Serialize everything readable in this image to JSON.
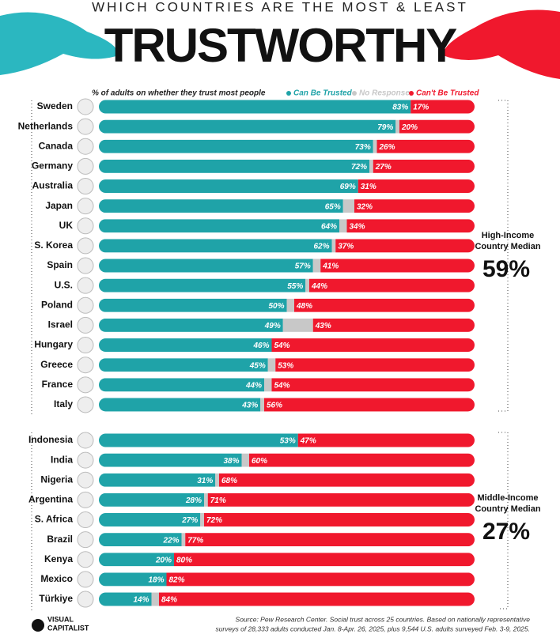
{
  "header": {
    "title": "WHICH COUNTRIES ARE THE MOST & LEAST",
    "subtitle": "TRUSTWORTHY"
  },
  "source": [
    "Source: Pew Research Center. Social trust across 25 countries. Based on nationally representative",
    "surveys of 28,333 adults conducted Jan. 8-Apr. 26, 2025, plus 9,544 U.S. adults surveyed Feb. 3-9, 2025."
  ],
  "brand": [
    "VISUAL",
    "CAPITALIST"
  ],
  "chart_data": [
    {
      "type": "bar",
      "orientation": "horizontal",
      "stacked": true,
      "axis_label": "% of adults on whether they trust most people",
      "categories": [
        "Sweden",
        "Netherlands",
        "Canada",
        "Germany",
        "Australia",
        "Japan",
        "UK",
        "S. Korea",
        "Spain",
        "U.S.",
        "Poland",
        "Israel",
        "Hungary",
        "Greece",
        "France",
        "Italy"
      ],
      "xlim": [
        0,
        100
      ],
      "series": [
        {
          "name": "Can Be Trusted",
          "color": "#1fa3a8",
          "values": [
            83,
            79,
            73,
            72,
            69,
            65,
            64,
            62,
            57,
            55,
            50,
            49,
            46,
            45,
            44,
            43
          ],
          "value_labels": [
            "83%",
            "79%",
            "73%",
            "72%",
            "69%",
            "65%",
            "64%",
            "62%",
            "57%",
            "55%",
            "50%",
            "49%",
            "46%",
            "45%",
            "44%",
            "43%"
          ]
        },
        {
          "name": "No Response",
          "color": "#c8c8c8",
          "values": [
            0,
            1,
            1,
            1,
            0,
            3,
            2,
            1,
            2,
            1,
            2,
            8,
            0,
            2,
            2,
            1
          ]
        },
        {
          "name": "Can't Be Trusted",
          "color": "#f0182d",
          "values": [
            17,
            20,
            26,
            27,
            31,
            32,
            34,
            37,
            41,
            44,
            48,
            43,
            54,
            53,
            54,
            56
          ],
          "value_labels": [
            "17%",
            "20%",
            "26%",
            "27%",
            "31%",
            "32%",
            "34%",
            "37%",
            "41%",
            "44%",
            "48%",
            "43%",
            "54%",
            "53%",
            "54%",
            "56%"
          ]
        }
      ],
      "annotation_lines": [
        "High-Income",
        "Country Median"
      ],
      "annotation_value": "59%"
    },
    {
      "type": "bar",
      "orientation": "horizontal",
      "stacked": true,
      "categories": [
        "Indonesia",
        "India",
        "Nigeria",
        "Argentina",
        "S. Africa",
        "Brazil",
        "Kenya",
        "Mexico",
        "Türkiye"
      ],
      "xlim": [
        0,
        100
      ],
      "series": [
        {
          "color": "#1fa3a8",
          "values": [
            53,
            38,
            31,
            28,
            27,
            22,
            20,
            18,
            14
          ],
          "value_labels": [
            "53%",
            "38%",
            "31%",
            "28%",
            "27%",
            "22%",
            "20%",
            "18%",
            "14%"
          ]
        },
        {
          "color": "#c8c8c8",
          "values": [
            0,
            2,
            1,
            1,
            1,
            1,
            0,
            0,
            2
          ]
        },
        {
          "color": "#f0182d",
          "values": [
            47,
            60,
            68,
            71,
            72,
            77,
            80,
            82,
            84
          ],
          "value_labels": [
            "47%",
            "60%",
            "68%",
            "71%",
            "72%",
            "77%",
            "80%",
            "82%",
            "84%"
          ]
        }
      ],
      "annotation_lines": [
        "Middle-Income",
        "Country Median"
      ],
      "annotation_value": "27%"
    }
  ]
}
